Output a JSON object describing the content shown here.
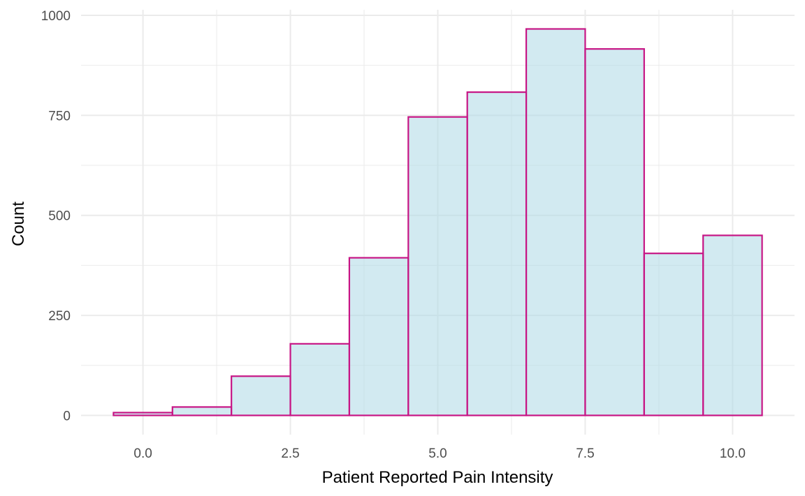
{
  "chart_data": {
    "type": "bar",
    "histogram": true,
    "title": "",
    "xlabel": "Patient Reported Pain Intensity",
    "ylabel": "Count",
    "bin_width": 1,
    "bins": [
      {
        "x": 0,
        "count": 7
      },
      {
        "x": 1,
        "count": 21
      },
      {
        "x": 2,
        "count": 98
      },
      {
        "x": 3,
        "count": 179
      },
      {
        "x": 4,
        "count": 394
      },
      {
        "x": 5,
        "count": 746
      },
      {
        "x": 6,
        "count": 808
      },
      {
        "x": 7,
        "count": 966
      },
      {
        "x": 8,
        "count": 916
      },
      {
        "x": 9,
        "count": 405
      },
      {
        "x": 10,
        "count": 450
      }
    ],
    "xlim": [
      -1.05,
      11.05
    ],
    "ylim": [
      -48,
      1000
    ],
    "x_ticks": [
      0,
      2.5,
      5,
      7.5,
      10
    ],
    "x_tick_labels": [
      "0.0",
      "2.5",
      "5.0",
      "7.5",
      "10.0"
    ],
    "y_ticks": [
      0,
      250,
      500,
      750,
      1000
    ],
    "y_tick_labels": [
      "0",
      "250",
      "500",
      "750",
      "1000"
    ],
    "grid": true,
    "legend": "none",
    "colors": {
      "bar_fill": "#add8e6",
      "bar_outline": "#c71585",
      "grid": "#ebebeb",
      "tick_text": "#4d4d4d"
    }
  }
}
